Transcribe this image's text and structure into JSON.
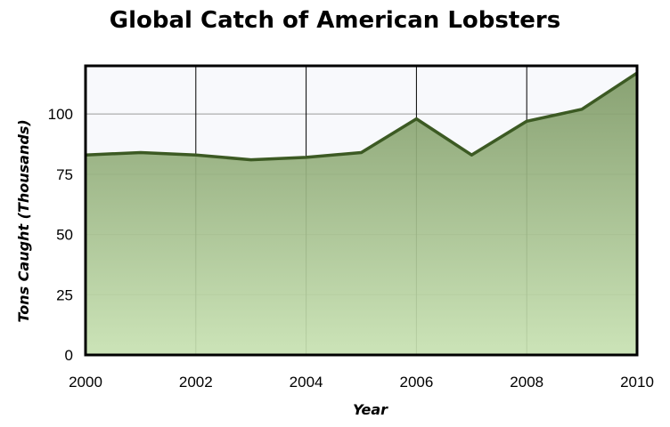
{
  "chart_data": {
    "type": "area",
    "title": "Global Catch of American Lobsters",
    "xlabel": "Year",
    "ylabel": "Tons Caught (Thousands)",
    "x": [
      2000,
      2001,
      2002,
      2003,
      2004,
      2005,
      2006,
      2007,
      2008,
      2009,
      2010
    ],
    "values": [
      83,
      84,
      83,
      81,
      82,
      84,
      98,
      83,
      97,
      102,
      117
    ],
    "xlim": [
      2000,
      2010
    ],
    "ylim": [
      0,
      120
    ],
    "x_ticks": [
      "2000",
      "2002",
      "2004",
      "2006",
      "2008",
      "2010"
    ],
    "y_ticks": [
      "0",
      "25",
      "50",
      "75",
      "100"
    ],
    "grid": true,
    "colors": {
      "line": "#3c5a23",
      "fill_top": "#7f9a67",
      "fill_bottom": "#c8e2b2",
      "plot_bg": "#f8f9fc"
    }
  }
}
